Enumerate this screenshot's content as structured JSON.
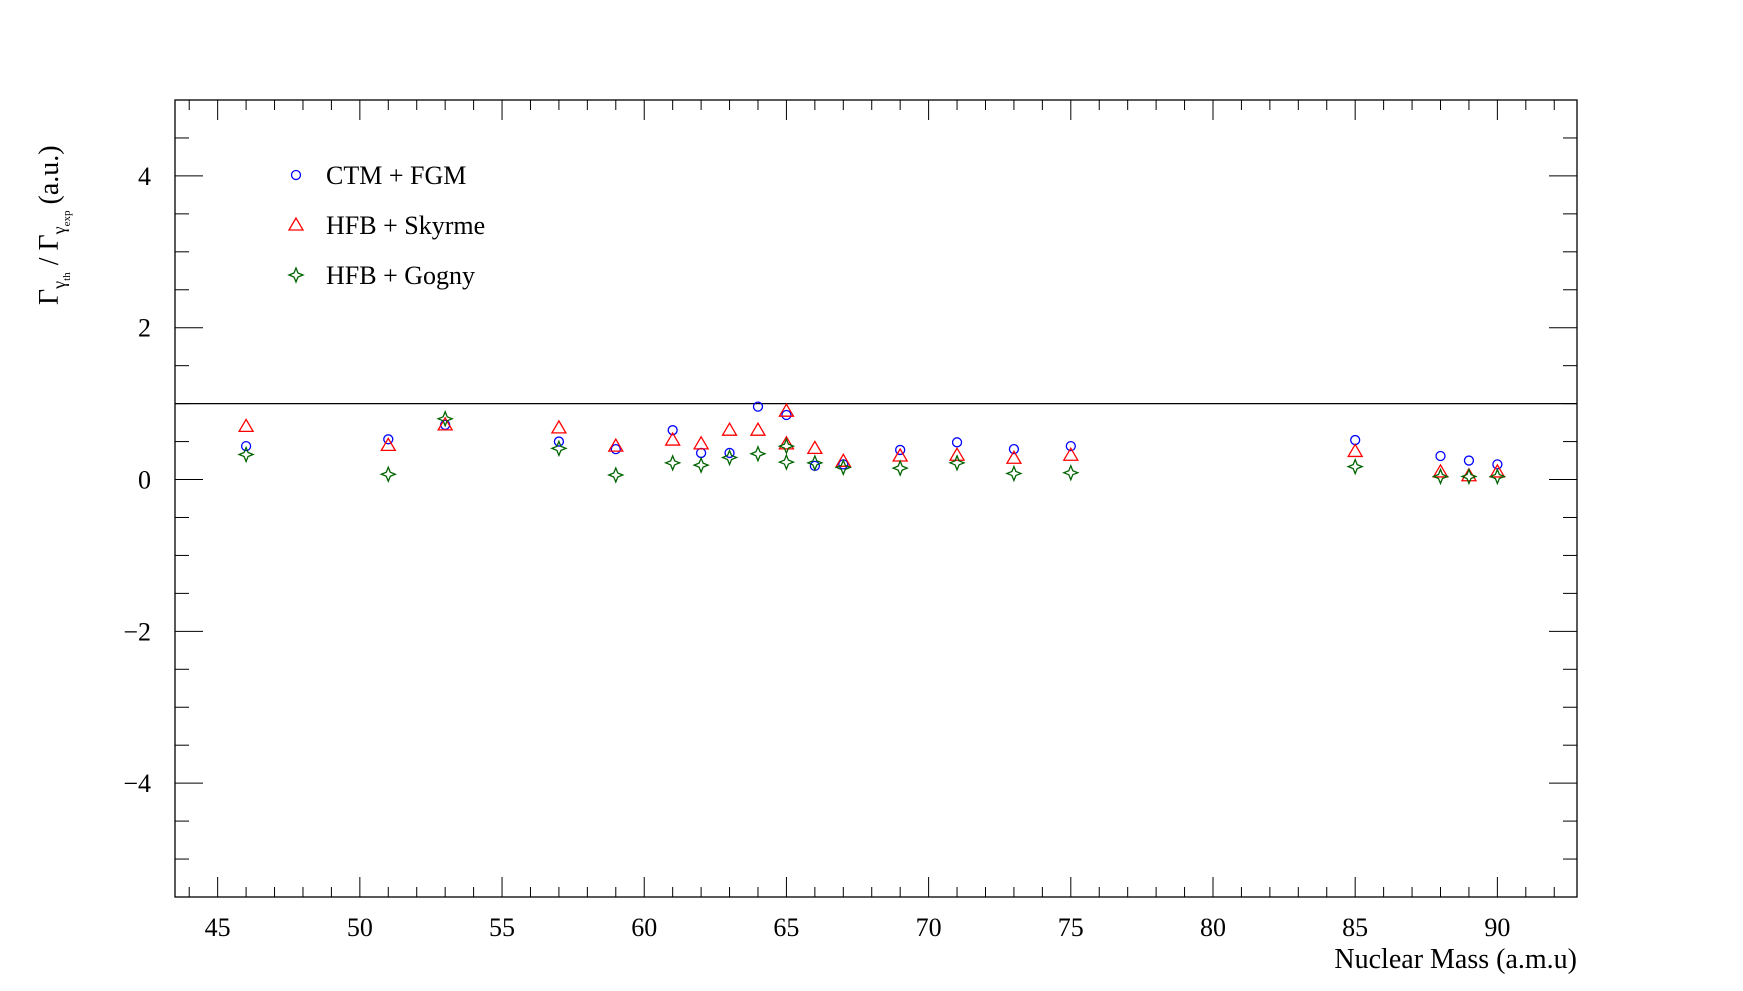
{
  "chart_data": {
    "type": "scatter",
    "title": "",
    "xlabel": "Nuclear Mass (a.m.u)",
    "ylabel": {
      "base": "Γ",
      "numerator_sub": "γ",
      "numerator_subsub": "th",
      "separator": " / ",
      "denominator_sub": "γ",
      "denominator_subsub": "exp",
      "unit": "(a.u.)"
    },
    "xlim": [
      43.5,
      92.8
    ],
    "ylim": [
      -5.5,
      5.0
    ],
    "x_ticks": [
      45,
      50,
      55,
      60,
      65,
      70,
      75,
      80,
      85,
      90
    ],
    "x_tick_labels": [
      "45",
      "50",
      "55",
      "60",
      "65",
      "70",
      "75",
      "80",
      "85",
      "90"
    ],
    "y_ticks": [
      -4,
      -2,
      0,
      2,
      4
    ],
    "y_tick_labels": [
      "−4",
      "−2",
      "0",
      "2",
      "4"
    ],
    "reference_line": 1,
    "grid": false,
    "legend_position": "top-left",
    "series": [
      {
        "name": "CTM + FGM",
        "marker": "circle",
        "color": "#0000ff",
        "points": [
          [
            46,
            0.44
          ],
          [
            51,
            0.53
          ],
          [
            53,
            0.72
          ],
          [
            57,
            0.5
          ],
          [
            59,
            0.4
          ],
          [
            61,
            0.65
          ],
          [
            62,
            0.35
          ],
          [
            63,
            0.35
          ],
          [
            64,
            0.96
          ],
          [
            65,
            0.85
          ],
          [
            66,
            0.18
          ],
          [
            67,
            0.2
          ],
          [
            69,
            0.39
          ],
          [
            71,
            0.49
          ],
          [
            73,
            0.4
          ],
          [
            75,
            0.44
          ],
          [
            85,
            0.52
          ],
          [
            88,
            0.31
          ],
          [
            89,
            0.25
          ],
          [
            90,
            0.2
          ]
        ]
      },
      {
        "name": "HFB + Skyrme",
        "marker": "triangle",
        "color": "#ff0000",
        "points": [
          [
            46,
            0.7
          ],
          [
            51,
            0.45
          ],
          [
            53,
            0.72
          ],
          [
            57,
            0.68
          ],
          [
            59,
            0.44
          ],
          [
            61,
            0.52
          ],
          [
            62,
            0.47
          ],
          [
            63,
            0.65
          ],
          [
            64,
            0.65
          ],
          [
            65,
            0.9
          ],
          [
            65,
            0.47
          ],
          [
            66,
            0.41
          ],
          [
            67,
            0.24
          ],
          [
            69,
            0.31
          ],
          [
            71,
            0.32
          ],
          [
            73,
            0.28
          ],
          [
            75,
            0.32
          ],
          [
            85,
            0.37
          ],
          [
            88,
            0.1
          ],
          [
            89,
            0.05
          ],
          [
            90,
            0.1
          ]
        ]
      },
      {
        "name": "HFB + Gogny",
        "marker": "star",
        "color": "#006400",
        "points": [
          [
            46,
            0.33
          ],
          [
            51,
            0.07
          ],
          [
            53,
            0.8
          ],
          [
            57,
            0.41
          ],
          [
            59,
            0.06
          ],
          [
            61,
            0.22
          ],
          [
            62,
            0.19
          ],
          [
            63,
            0.29
          ],
          [
            64,
            0.34
          ],
          [
            65,
            0.44
          ],
          [
            65,
            0.23
          ],
          [
            66,
            0.22
          ],
          [
            67,
            0.16
          ],
          [
            69,
            0.15
          ],
          [
            71,
            0.22
          ],
          [
            73,
            0.08
          ],
          [
            75,
            0.09
          ],
          [
            85,
            0.17
          ],
          [
            88,
            0.04
          ],
          [
            89,
            0.04
          ],
          [
            90,
            0.04
          ]
        ]
      }
    ]
  }
}
